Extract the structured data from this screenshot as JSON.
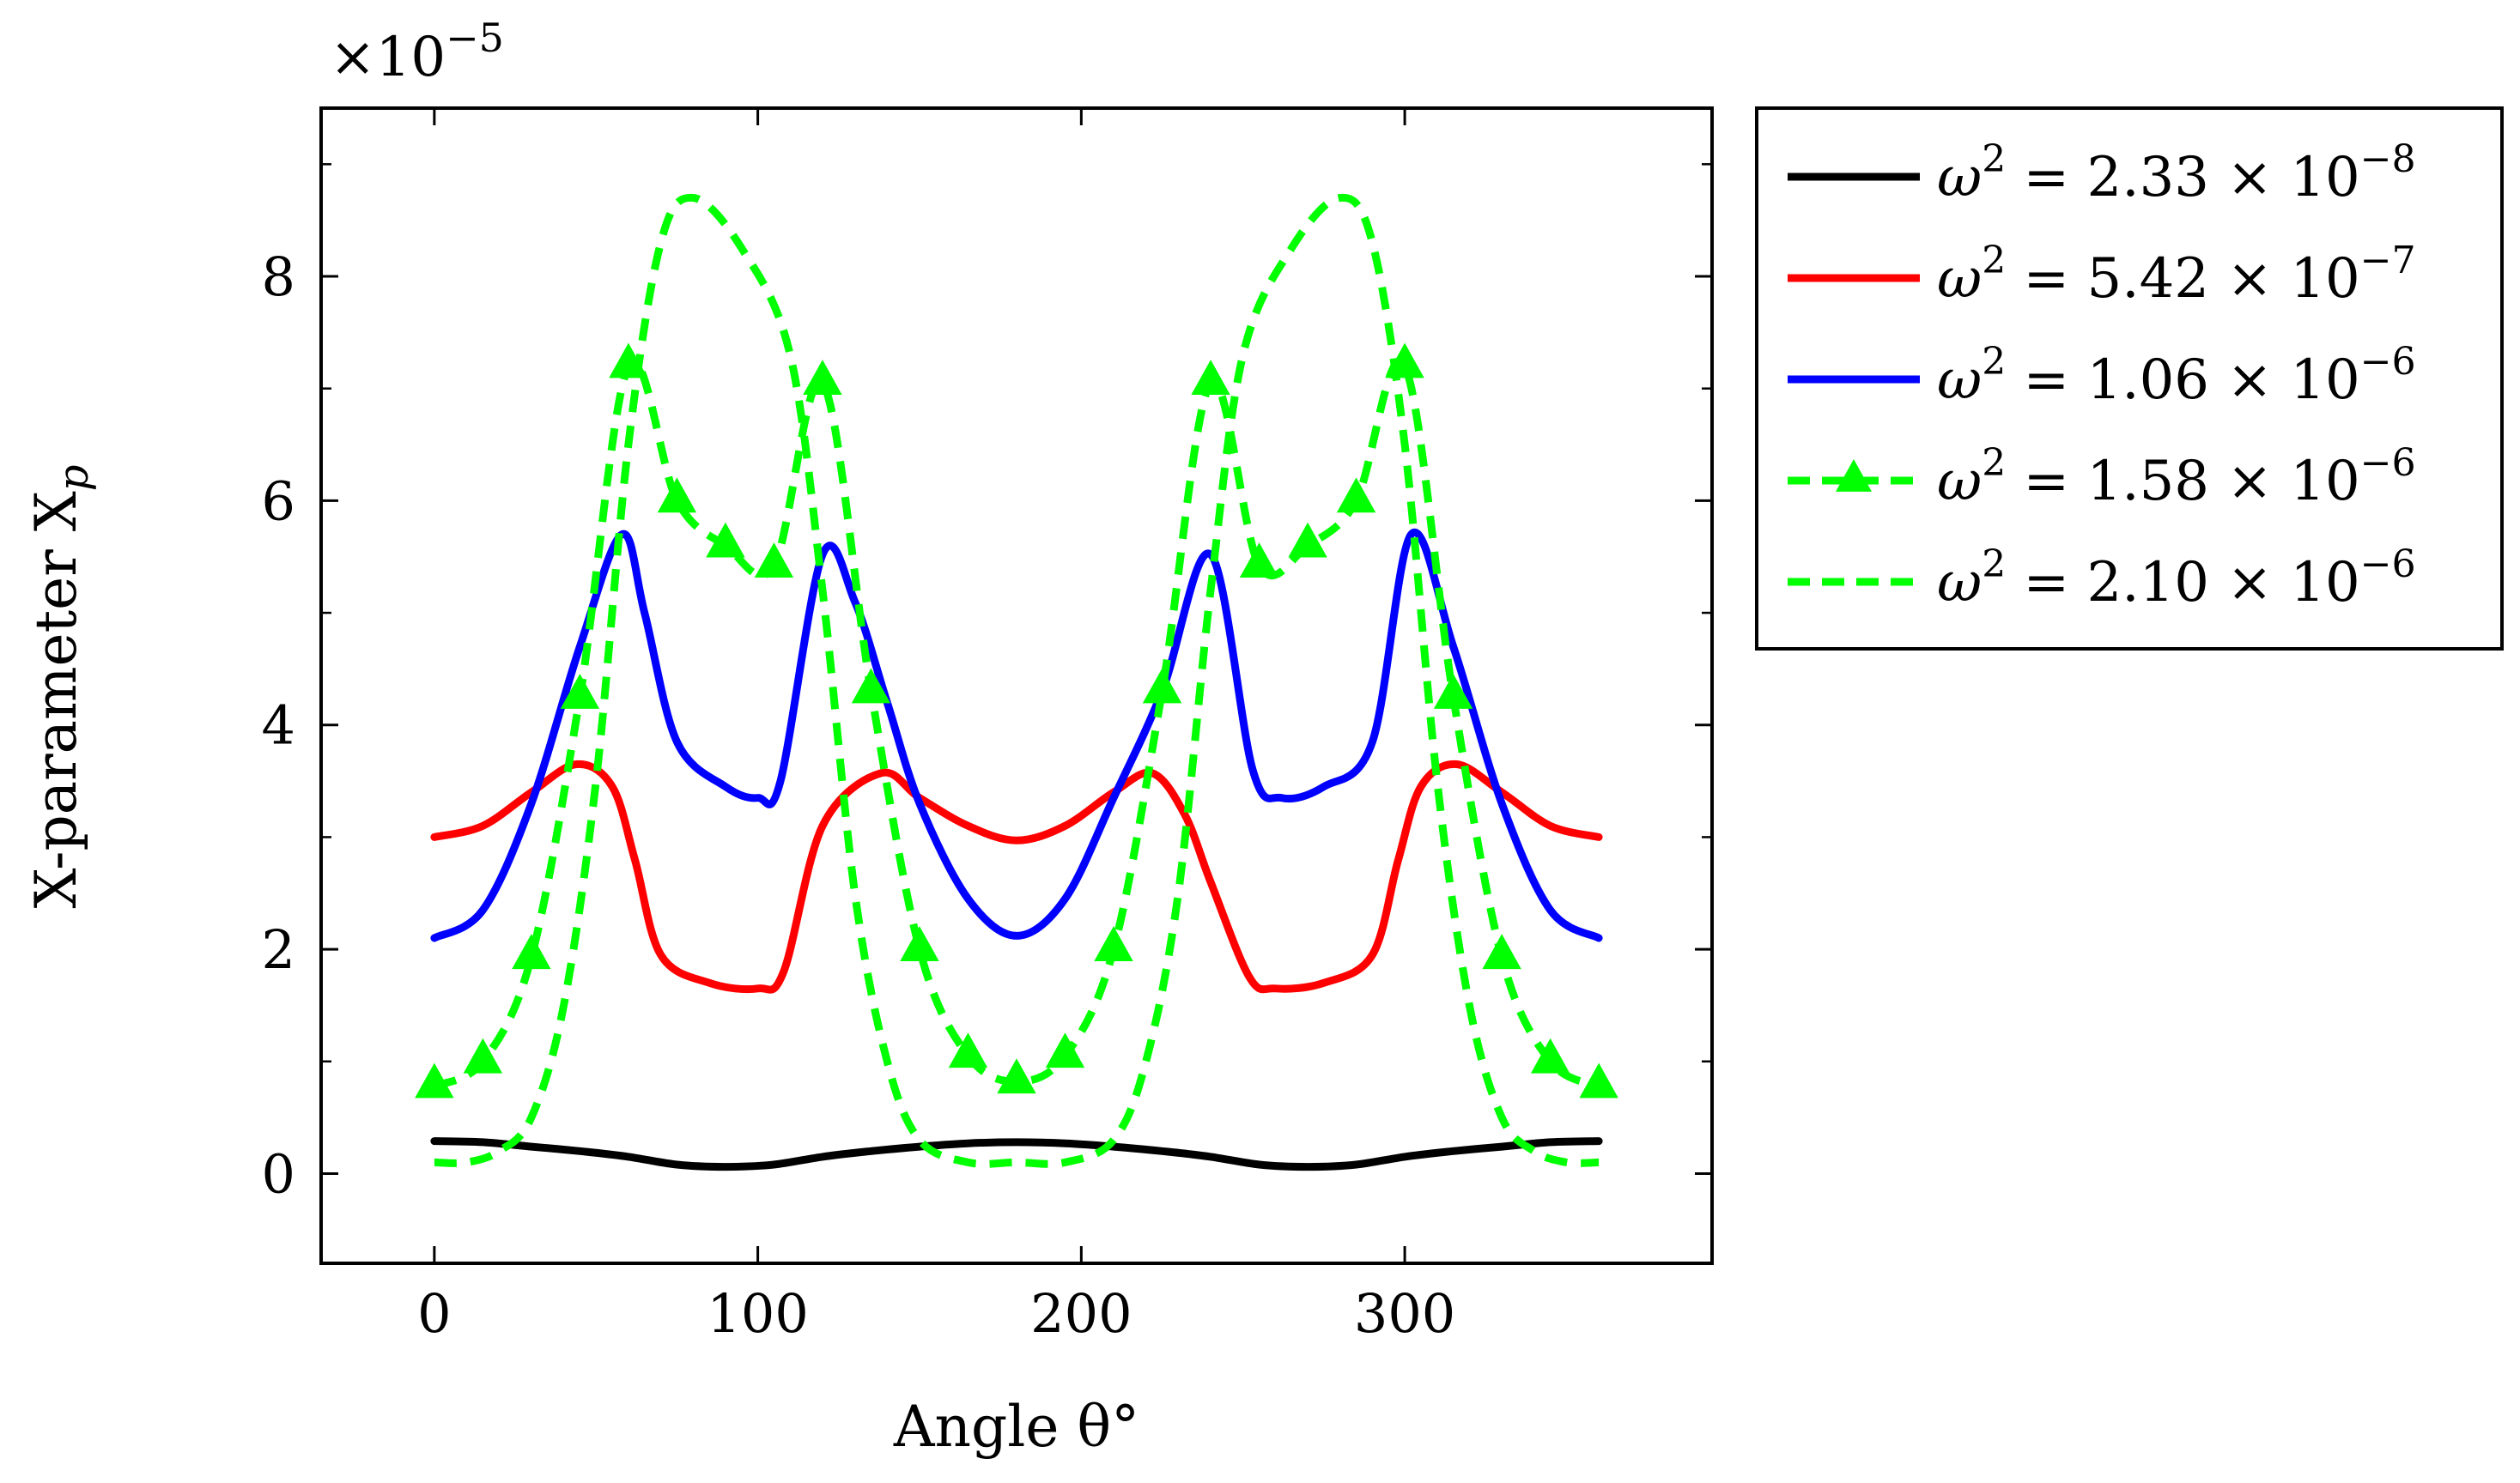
{
  "chart_data": {
    "type": "line",
    "xlabel": "Angle θ°",
    "ylabel": "X-parameter X_p",
    "ylabel_main": "X-parameter X",
    "ylabel_sub": "p",
    "y_scale_label": "×10",
    "y_scale_exponent": "−5",
    "xlim": [
      -35,
      395
    ],
    "ylim": [
      -0.8,
      9.5
    ],
    "x_ticks": [
      0,
      100,
      200,
      300
    ],
    "x_tick_labels": [
      "0",
      "100",
      "200",
      "300"
    ],
    "y_ticks": [
      0,
      2,
      4,
      6,
      8
    ],
    "y_tick_labels": [
      "0",
      "2",
      "4",
      "6",
      "8"
    ],
    "legend_position": "outside-right",
    "series": [
      {
        "name": "ω² = 2.33 × 10⁻⁸",
        "legend_base": "ω",
        "legend_sup": "2",
        "legend_mid": " = 2.33 × 10",
        "legend_exp": "−8",
        "color": "#000000",
        "dashed": false,
        "marker": "none",
        "x": [
          0,
          15,
          30,
          45,
          60,
          75,
          90,
          105,
          120,
          135,
          150,
          165,
          180,
          195,
          210,
          225,
          240,
          255,
          270,
          285,
          300,
          315,
          330,
          345,
          360
        ],
        "y": [
          0.29,
          0.28,
          0.24,
          0.2,
          0.15,
          0.08,
          0.06,
          0.08,
          0.15,
          0.2,
          0.24,
          0.27,
          0.28,
          0.27,
          0.24,
          0.2,
          0.15,
          0.08,
          0.06,
          0.08,
          0.15,
          0.2,
          0.24,
          0.28,
          0.29
        ]
      },
      {
        "name": "ω² = 5.42 × 10⁻⁷",
        "legend_base": "ω",
        "legend_sup": "2",
        "legend_mid": " = 5.42 × 10",
        "legend_exp": "−7",
        "color": "#ff0000",
        "dashed": false,
        "marker": "none",
        "x": [
          0,
          15,
          30,
          44,
          55,
          62,
          70,
          85,
          100,
          108,
          120,
          138,
          150,
          165,
          180,
          195,
          210,
          222,
          232,
          240,
          252,
          260,
          275,
          290,
          298,
          305,
          316,
          330,
          345,
          360
        ],
        "y": [
          3.0,
          3.1,
          3.4,
          3.65,
          3.45,
          2.8,
          1.95,
          1.7,
          1.65,
          1.8,
          3.1,
          3.57,
          3.35,
          3.1,
          2.97,
          3.1,
          3.4,
          3.57,
          3.2,
          2.6,
          1.75,
          1.65,
          1.7,
          1.95,
          2.8,
          3.45,
          3.65,
          3.4,
          3.1,
          3.0
        ]
      },
      {
        "name": "ω² = 1.06 × 10⁻⁶",
        "legend_base": "ω",
        "legend_sup": "2",
        "legend_mid": " = 1.06 × 10",
        "legend_exp": "−6",
        "color": "#0000ff",
        "dashed": false,
        "marker": "none",
        "x": [
          0,
          15,
          30,
          45,
          58,
          65,
          75,
          90,
          100,
          107,
          120,
          130,
          140,
          150,
          165,
          180,
          195,
          210,
          225,
          240,
          253,
          262,
          275,
          290,
          302,
          315,
          330,
          345,
          360
        ],
        "y": [
          2.1,
          2.35,
          3.3,
          4.7,
          5.7,
          5.0,
          3.85,
          3.45,
          3.35,
          3.5,
          5.52,
          5.1,
          4.2,
          3.3,
          2.45,
          2.12,
          2.45,
          3.35,
          4.3,
          5.52,
          3.6,
          3.35,
          3.45,
          3.85,
          5.7,
          4.7,
          3.3,
          2.35,
          2.1
        ]
      },
      {
        "name": "ω² = 1.58 × 10⁻⁶",
        "legend_base": "ω",
        "legend_sup": "2",
        "legend_mid": " = 1.58 × 10",
        "legend_exp": "−6",
        "color": "#00ff00",
        "dashed": true,
        "marker": "triangle",
        "x": [
          0,
          15,
          30,
          45,
          60,
          75,
          90,
          105,
          120,
          135,
          150,
          165,
          180,
          195,
          210,
          225,
          240,
          255,
          270,
          285,
          300,
          315,
          330,
          345,
          360
        ],
        "y": [
          0.78,
          1.0,
          1.93,
          4.25,
          7.2,
          6.0,
          5.6,
          5.42,
          7.05,
          4.3,
          2.0,
          1.05,
          0.82,
          1.05,
          2.0,
          4.3,
          7.05,
          5.42,
          5.6,
          6.0,
          7.2,
          4.25,
          1.93,
          1.0,
          0.78
        ]
      },
      {
        "name": "ω² = 2.10 × 10⁻⁶",
        "legend_base": "ω",
        "legend_sup": "2",
        "legend_mid": " = 2.10 × 10",
        "legend_exp": "−6",
        "color": "#00ff00",
        "dashed": true,
        "marker": "none",
        "x": [
          0,
          10,
          20,
          30,
          40,
          50,
          60,
          70,
          80,
          95,
          110,
          120,
          130,
          140,
          150,
          165,
          180,
          195,
          210,
          220,
          230,
          240,
          250,
          265,
          280,
          290,
          300,
          310,
          320,
          330,
          340,
          350,
          360
        ],
        "y": [
          0.1,
          0.1,
          0.2,
          0.5,
          1.5,
          3.5,
          6.5,
          8.3,
          8.7,
          8.25,
          7.3,
          5.2,
          2.5,
          1.0,
          0.3,
          0.1,
          0.1,
          0.1,
          0.3,
          1.0,
          2.5,
          5.2,
          7.3,
          8.25,
          8.7,
          8.3,
          6.5,
          3.5,
          1.5,
          0.5,
          0.2,
          0.1,
          0.1
        ]
      }
    ]
  }
}
